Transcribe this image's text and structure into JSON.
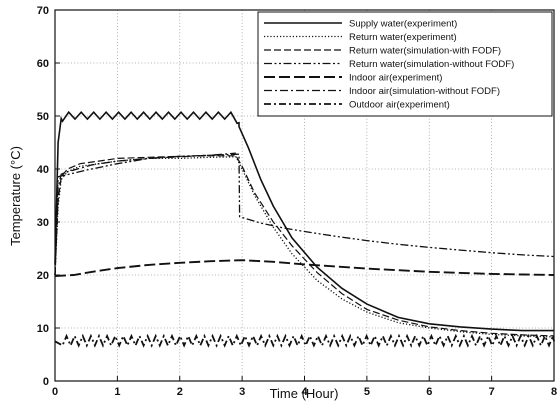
{
  "chart_data": {
    "type": "line",
    "title": "",
    "xlabel": "Time (Hour)",
    "ylabel": "Temperature (°C)",
    "xlim": [
      0,
      8
    ],
    "ylim": [
      0,
      70
    ],
    "xticks": [
      "0",
      "1",
      "2",
      "3",
      "4",
      "5",
      "6",
      "7",
      "8"
    ],
    "yticks": [
      "0",
      "10",
      "20",
      "30",
      "40",
      "50",
      "60",
      "70"
    ],
    "grid": true,
    "legend_position": "top-right",
    "series": [
      {
        "name": "Supply water(experiment)",
        "style": "solid",
        "x": [
          0,
          0.05,
          0.1,
          0.2,
          0.5,
          1.0,
          1.5,
          2.0,
          2.5,
          2.9,
          2.95,
          3.1,
          3.3,
          3.5,
          3.8,
          4.2,
          4.6,
          5.0,
          5.5,
          6.0,
          6.5,
          7.0,
          7.5,
          8.0
        ],
        "y": [
          22,
          45,
          49.5,
          50,
          50,
          50,
          50,
          50,
          50,
          50,
          48,
          44,
          38,
          33,
          27,
          21.5,
          17.5,
          14.5,
          12,
          10.8,
          10.2,
          9.8,
          9.5,
          9.5
        ],
        "sawtooth": {
          "until": 2.95,
          "amplitude": 1.3,
          "period": 0.2
        }
      },
      {
        "name": "Return water(experiment)",
        "style": "dotted",
        "x": [
          0,
          0.05,
          0.1,
          0.2,
          0.4,
          0.7,
          1.0,
          1.5,
          2.0,
          2.5,
          2.9,
          3.0,
          3.2,
          3.5,
          3.8,
          4.2,
          4.6,
          5.0,
          5.5,
          6.0,
          6.5,
          7.0,
          7.5,
          8.0
        ],
        "y": [
          20,
          33,
          38,
          39.5,
          40.5,
          41,
          41.5,
          42,
          42,
          42.2,
          42.3,
          40,
          35,
          29,
          24,
          19,
          15.5,
          13,
          11,
          10,
          9.3,
          8.8,
          8.5,
          8.3
        ]
      },
      {
        "name": "Return water(simulation-with FODF)",
        "style": "dashed",
        "x": [
          0,
          0.05,
          0.1,
          0.2,
          0.4,
          0.7,
          1.0,
          1.5,
          2.0,
          2.5,
          2.9,
          3.0,
          3.2,
          3.5,
          3.8,
          4.2,
          4.6,
          5.0,
          5.5,
          6.0,
          6.5,
          7.0,
          7.5,
          8.0
        ],
        "y": [
          20,
          34,
          38.5,
          40,
          41,
          41.5,
          42,
          42.2,
          42.4,
          42.5,
          42.5,
          40.5,
          35.5,
          30,
          25.5,
          20.5,
          16.5,
          13.5,
          11.5,
          10.2,
          9.5,
          9,
          8.7,
          8.5
        ]
      },
      {
        "name": "Return water(simulation-without FODF)",
        "style": "dashdotdot",
        "x": [
          0,
          0.05,
          0.1,
          0.15,
          0.5,
          1.0,
          1.5,
          2.0,
          2.5,
          2.95,
          2.96,
          3.3,
          3.7,
          4.0,
          4.5,
          5.0,
          5.5,
          6.0,
          6.5,
          7.0,
          7.5,
          8.0
        ],
        "y": [
          20,
          38.5,
          38.7,
          38.8,
          39.8,
          41,
          42,
          42.4,
          42.6,
          42.8,
          31,
          29.8,
          28.8,
          28.2,
          27.3,
          26.5,
          25.8,
          25.2,
          24.7,
          24.2,
          23.8,
          23.5
        ]
      },
      {
        "name": "Indoor air(experiment)",
        "style": "longdash",
        "x": [
          0,
          0.3,
          0.6,
          1.0,
          1.5,
          2.0,
          2.5,
          3.0,
          3.5,
          4.0,
          4.5,
          5.0,
          5.5,
          6.0,
          6.5,
          7.0,
          7.5,
          8.0
        ],
        "y": [
          19.8,
          20,
          20.6,
          21.3,
          21.9,
          22.3,
          22.6,
          22.8,
          22.5,
          22,
          21.6,
          21.2,
          20.9,
          20.6,
          20.4,
          20.2,
          20.1,
          20
        ]
      },
      {
        "name": "Indoor air(simulation-without FODF)",
        "style": "dashdot",
        "x": [
          0,
          0.05,
          0.1,
          0.15,
          0.3,
          0.6,
          1.0,
          1.5,
          2.0,
          2.5,
          2.9
        ],
        "y": [
          20,
          36.5,
          39,
          39.3,
          39.8,
          40.8,
          41.5,
          42,
          42.3,
          42.6,
          43
        ]
      },
      {
        "name": "Outdoor air(experiment)",
        "style": "dashdot-bold",
        "x": [
          0,
          1,
          2,
          3,
          4,
          5,
          6,
          7,
          8
        ],
        "y": [
          7.5,
          7.5,
          7.5,
          7.5,
          7.5,
          7.5,
          7.5,
          7.5,
          7.5
        ],
        "sawtooth": {
          "until": 8,
          "amplitude": 1.8,
          "period": 0.13
        }
      }
    ]
  }
}
